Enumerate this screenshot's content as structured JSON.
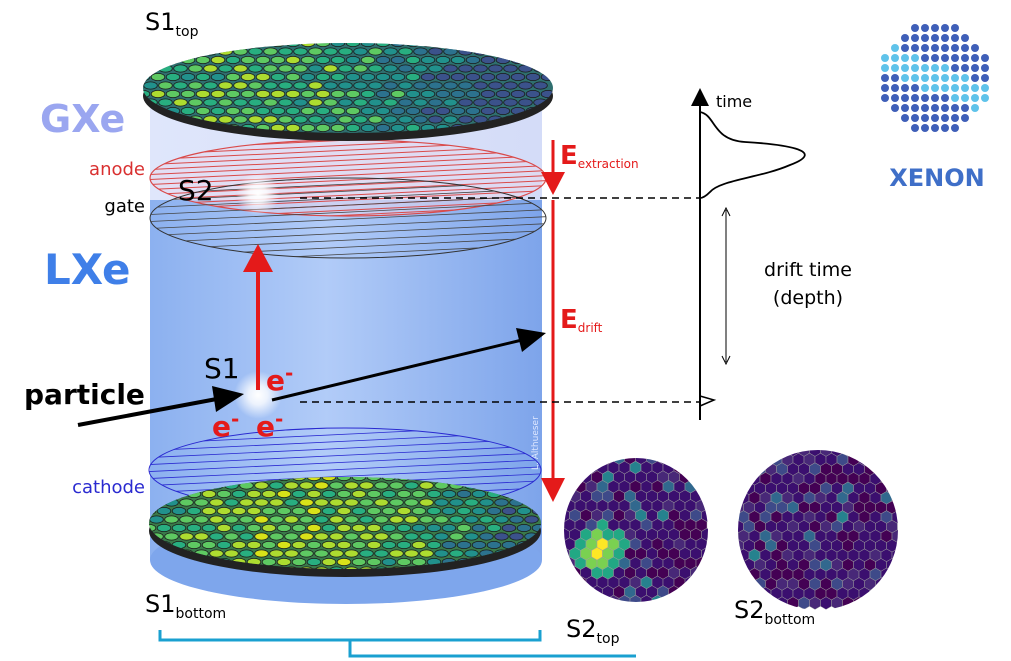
{
  "pmt_arrays": {
    "top": {
      "base": "S1",
      "sub": "top"
    },
    "bottom": {
      "base": "S1",
      "sub": "bottom"
    }
  },
  "phases": {
    "gas": "GXe",
    "liquid": "LXe"
  },
  "electrodes": {
    "anode": "anode",
    "gate": "gate",
    "cathode": "cathode"
  },
  "signals": {
    "s2": "S2",
    "s1": "S1"
  },
  "electrons": [
    {
      "base": "e",
      "sup": "-"
    },
    {
      "base": "e",
      "sup": "-"
    },
    {
      "base": "e",
      "sup": "-"
    }
  ],
  "particle": "particle",
  "fields": [
    {
      "base": "E",
      "sub": "extraction"
    },
    {
      "base": "E",
      "sub": "drift"
    }
  ],
  "waveform": {
    "axis": "time",
    "drift_time": "drift time",
    "depth": "(depth)"
  },
  "hit_patterns": [
    {
      "base": "S2",
      "sub": "top"
    },
    {
      "base": "S2",
      "sub": "bottom"
    }
  ],
  "logo": "XENON",
  "credit": "L. Althueser"
}
